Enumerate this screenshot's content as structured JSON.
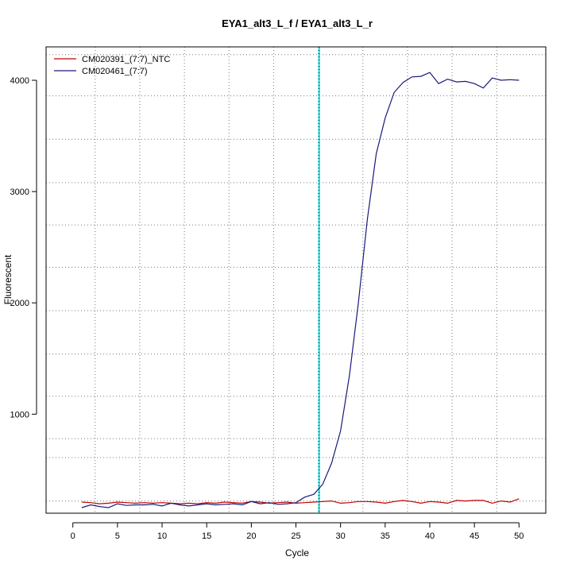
{
  "chart_data": {
    "type": "line",
    "title": "EYA1_alt3_L_f / EYA1_alt3_L_r",
    "xlabel": "Cycle",
    "ylabel": "Fluorescent",
    "xlim": [
      -3,
      53
    ],
    "ylim": [
      110,
      4300
    ],
    "xticks": [
      0,
      5,
      10,
      15,
      20,
      25,
      30,
      35,
      40,
      45,
      50
    ],
    "yticks": [
      1000,
      2000,
      3000,
      4000
    ],
    "grid": true,
    "grid_x": [
      2.5,
      7.5,
      12.5,
      17.5,
      22.5,
      27.5,
      32.5,
      37.5,
      42.5,
      47.5
    ],
    "grid_y": [
      220,
      610,
      780,
      1160,
      1540,
      1930,
      2320,
      2700,
      3080,
      3470,
      3860,
      4230
    ],
    "threshold_cycle": 27.6,
    "threshold_color": "#00e5ee",
    "legend_position": "top-left",
    "x": [
      1,
      2,
      3,
      4,
      5,
      6,
      7,
      8,
      9,
      10,
      11,
      12,
      13,
      14,
      15,
      16,
      17,
      18,
      19,
      20,
      21,
      22,
      23,
      24,
      25,
      26,
      27,
      28,
      29,
      30,
      31,
      32,
      33,
      34,
      35,
      36,
      37,
      38,
      39,
      40,
      41,
      42,
      43,
      44,
      45,
      46,
      47,
      48,
      49,
      50
    ],
    "series": [
      {
        "name": "CM020391_(7:7)_NTC",
        "color": "#c00000",
        "values": [
          210,
          205,
          195,
          200,
          210,
          205,
          200,
          205,
          200,
          205,
          200,
          195,
          200,
          195,
          205,
          200,
          210,
          205,
          200,
          215,
          210,
          200,
          205,
          210,
          200,
          205,
          210,
          215,
          220,
          200,
          205,
          215,
          215,
          210,
          200,
          215,
          225,
          215,
          200,
          215,
          210,
          200,
          225,
          220,
          225,
          225,
          200,
          220,
          210,
          240
        ]
      },
      {
        "name": "CM020461_(7:7)",
        "color": "#1a1a7a",
        "values": [
          160,
          185,
          170,
          160,
          195,
          180,
          185,
          185,
          190,
          175,
          200,
          185,
          175,
          185,
          195,
          185,
          190,
          195,
          185,
          215,
          195,
          205,
          190,
          195,
          205,
          255,
          280,
          370,
          560,
          850,
          1350,
          2000,
          2750,
          3340,
          3660,
          3890,
          3980,
          4030,
          4035,
          4070,
          3970,
          4010,
          3985,
          3990,
          3970,
          3930,
          4020,
          4000,
          4005,
          4000
        ]
      }
    ]
  }
}
